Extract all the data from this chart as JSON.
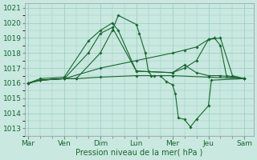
{
  "background_color": "#c8e8e0",
  "grid_color": "#99ccbb",
  "line_color": "#1a6630",
  "ylim": [
    1012.5,
    1021.3
  ],
  "yticks": [
    1013,
    1014,
    1015,
    1016,
    1017,
    1018,
    1019,
    1020,
    1021
  ],
  "xlabel": "Pression niveau de la mer( hPa )",
  "xtick_labels": [
    "Mar",
    "Ven",
    "Dim",
    "Lun",
    "Mer",
    "Jeu",
    "Sam"
  ],
  "xtick_positions": [
    0,
    6,
    12,
    18,
    24,
    30,
    36
  ],
  "xlim": [
    -0.5,
    37.5
  ],
  "lines": [
    {
      "x": [
        0,
        2,
        6,
        8,
        12,
        14,
        15,
        18,
        18.5,
        19.5,
        20,
        20.5,
        21,
        22,
        23,
        24,
        24.5,
        25,
        26,
        27,
        28,
        30,
        30.5,
        36
      ],
      "y": [
        1016.0,
        1016.2,
        1016.3,
        1016.3,
        1018.0,
        1019.5,
        1020.5,
        1019.9,
        1019.3,
        1018.0,
        1016.8,
        1016.5,
        1016.5,
        1016.5,
        1016.1,
        1015.9,
        1015.3,
        1013.7,
        1013.6,
        1013.1,
        1013.6,
        1014.5,
        1016.2,
        1016.3
      ]
    },
    {
      "x": [
        0,
        2,
        6,
        8,
        12,
        18,
        24,
        30,
        36
      ],
      "y": [
        1016.0,
        1016.2,
        1016.3,
        1016.3,
        1016.4,
        1016.5,
        1016.5,
        1016.4,
        1016.3
      ]
    },
    {
      "x": [
        0,
        2,
        6,
        12,
        18,
        24,
        26,
        28,
        30,
        31,
        32,
        33,
        36
      ],
      "y": [
        1016.0,
        1016.2,
        1016.3,
        1017.0,
        1017.5,
        1018.0,
        1018.2,
        1018.4,
        1018.9,
        1019.0,
        1018.5,
        1016.5,
        1016.3
      ]
    },
    {
      "x": [
        0,
        2,
        6,
        10,
        12,
        14,
        18,
        24,
        26,
        28,
        30,
        32,
        34,
        36
      ],
      "y": [
        1016.0,
        1016.2,
        1016.3,
        1018.0,
        1019.3,
        1019.7,
        1016.8,
        1016.7,
        1017.0,
        1017.5,
        1018.9,
        1019.0,
        1016.5,
        1016.3
      ]
    },
    {
      "x": [
        0,
        2,
        6,
        10,
        12,
        14,
        15,
        18,
        24,
        26,
        28,
        30,
        32,
        36
      ],
      "y": [
        1016.0,
        1016.3,
        1016.4,
        1018.8,
        1019.5,
        1020.0,
        1019.5,
        1016.8,
        1016.7,
        1017.2,
        1016.7,
        1016.5,
        1016.5,
        1016.3
      ]
    }
  ]
}
